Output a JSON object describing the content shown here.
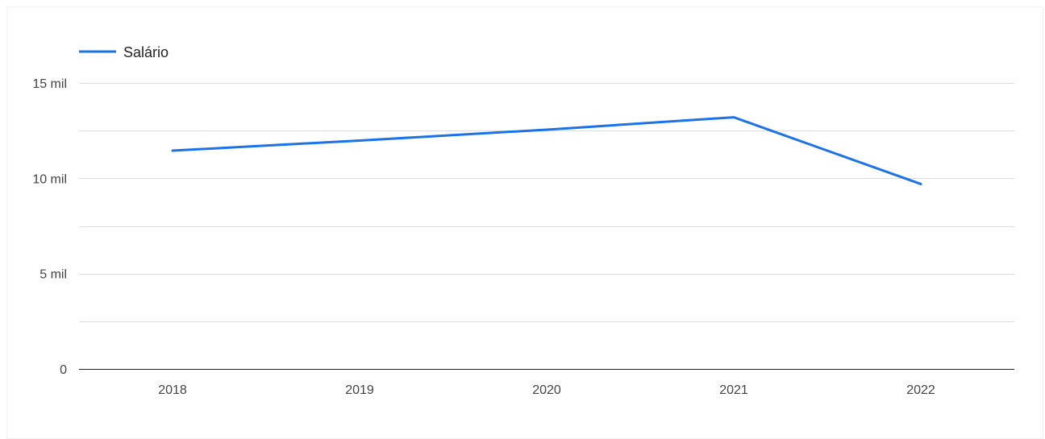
{
  "chart_data": {
    "type": "line",
    "categories": [
      "2018",
      "2019",
      "2020",
      "2021",
      "2022"
    ],
    "series": [
      {
        "name": "Salário",
        "values": [
          11450,
          11980,
          12550,
          13200,
          9700
        ],
        "color": "#1a73e8"
      }
    ],
    "title": "",
    "xlabel": "",
    "ylabel": "",
    "ylim": [
      0,
      15000
    ],
    "ytick_values": [
      0,
      5000,
      10000,
      15000
    ],
    "ytick_labels": [
      "0",
      "5 mil",
      "10 mil",
      "15 mil"
    ],
    "minor_gridlines": [
      2500,
      7500,
      12500
    ],
    "grid": true,
    "legend_position": "top-left",
    "colors": {
      "line": "#1a73e8",
      "grid": "#dadce0",
      "axis": "#222222",
      "text": "#444444"
    }
  }
}
